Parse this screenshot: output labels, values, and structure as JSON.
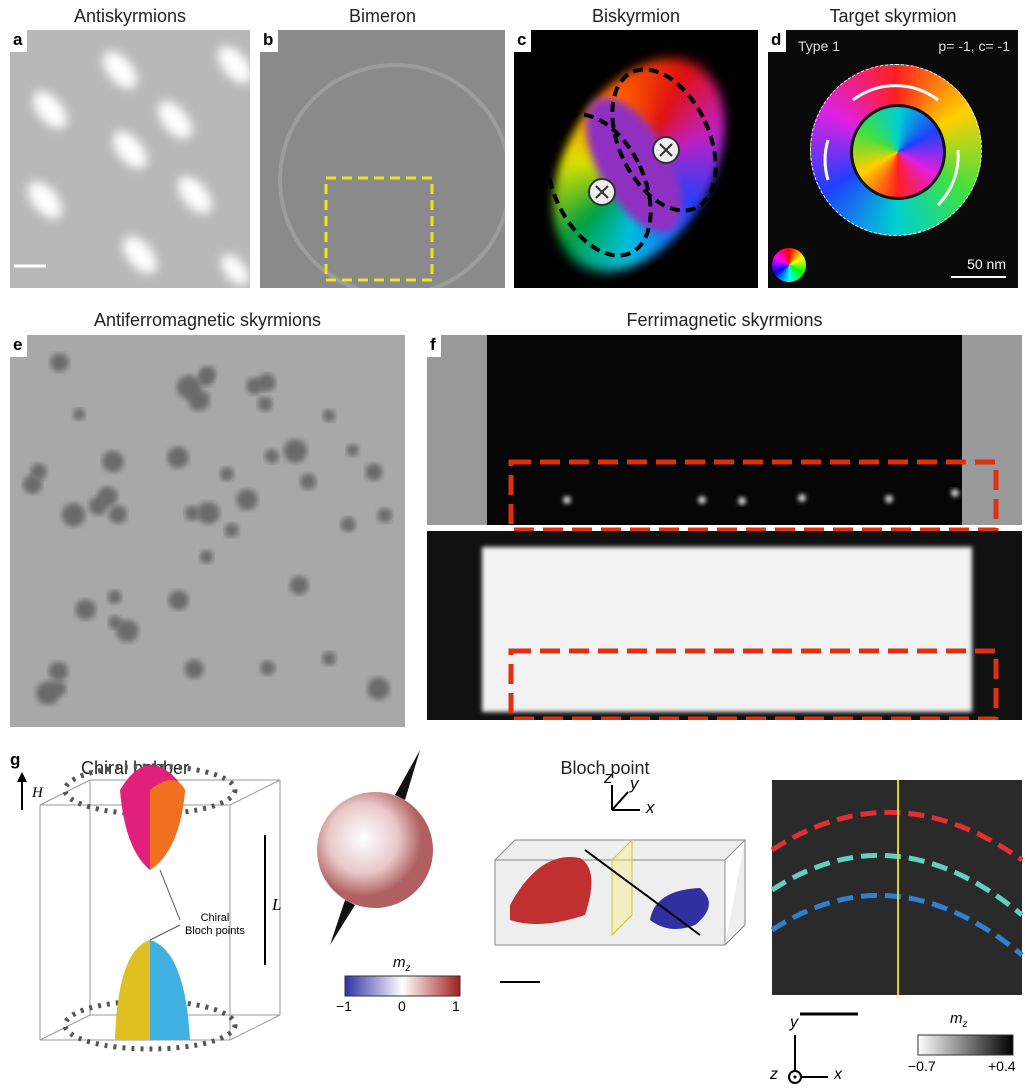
{
  "panels": [
    {
      "letter": "a",
      "title": "Antiskyrmions"
    },
    {
      "letter": "b",
      "title": "Bimeron"
    },
    {
      "letter": "c",
      "title": "Biskyrmion"
    },
    {
      "letter": "d",
      "title": "Target skyrmion"
    },
    {
      "letter": "e",
      "title": "Antiferromagnetic skyrmions"
    },
    {
      "letter": "f",
      "title": "Ferrimagnetic skyrmions"
    }
  ],
  "panel_d": {
    "type": "Type 1",
    "params": "p= -1, c= -1",
    "scale": "50 nm"
  },
  "panel_g": {
    "letter": "g",
    "titles": [
      "Chiral bobber",
      "Bloch point"
    ],
    "field_label": "H",
    "length_label": "L",
    "bloch_points_label": [
      "Chiral",
      "Bloch points"
    ],
    "colorbar1": {
      "label": "m",
      "sub": "z",
      "ticks": [
        "−1",
        "0",
        "1"
      ]
    },
    "axes1": [
      "z",
      "y",
      "x"
    ],
    "colorbar2": {
      "label": "m",
      "sub": "z",
      "ticks": [
        "−0.7",
        "+0.4"
      ]
    },
    "axes2": [
      "y",
      "z",
      "x"
    ]
  }
}
